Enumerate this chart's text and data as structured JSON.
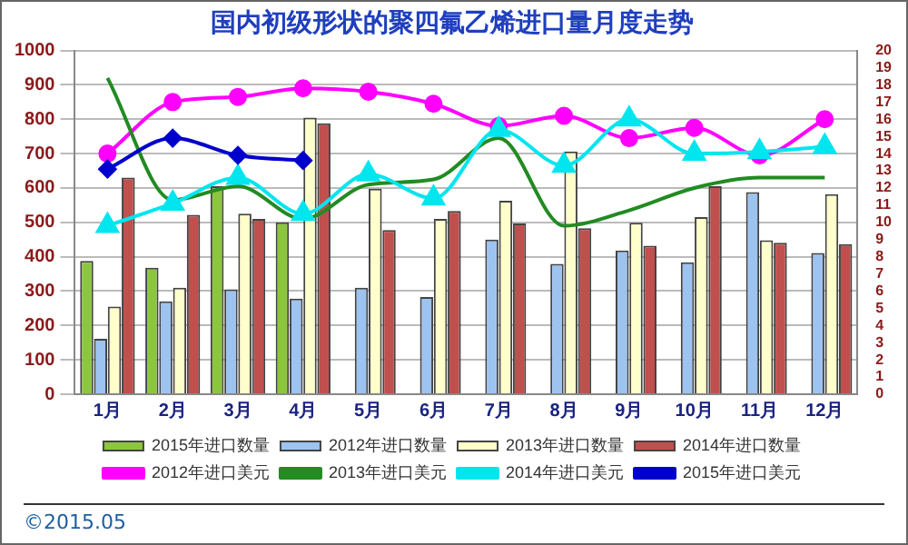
{
  "chart_data": {
    "type": "bar",
    "title": "国内初级形状的聚四氟乙烯进口量月度走势",
    "categories": [
      "1月",
      "2月",
      "3月",
      "4月",
      "5月",
      "6月",
      "7月",
      "8月",
      "9月",
      "10月",
      "11月",
      "12月"
    ],
    "series": [
      {
        "name": "2015年进口数量",
        "color": "#8cc63f",
        "values": [
          388,
          368,
          605,
          500,
          null,
          null,
          null,
          null,
          null,
          null,
          null,
          null
        ]
      },
      {
        "name": "2012年进口数量",
        "color": "#9dc3f0",
        "values": [
          161,
          270,
          305,
          278,
          310,
          283,
          450,
          379,
          418,
          384,
          588,
          411
        ]
      },
      {
        "name": "2013年进口数量",
        "color": "#ffffcc",
        "values": [
          255,
          310,
          525,
          805,
          598,
          510,
          563,
          706,
          499,
          515,
          448,
          582
        ]
      },
      {
        "name": "2014年进口数量",
        "color": "#c0504d",
        "values": [
          630,
          522,
          510,
          788,
          478,
          533,
          497,
          483,
          432,
          605,
          441,
          437
        ]
      },
      {
        "name": "2012年进口美元",
        "type": "line",
        "axis": "y2",
        "marker": "circle",
        "color": "#ff00ff",
        "values": [
          14.0,
          17.0,
          17.3,
          17.8,
          17.6,
          16.9,
          15.6,
          16.2,
          14.9,
          15.5,
          13.9,
          16.0
        ]
      },
      {
        "name": "2013年进口美元",
        "type": "line",
        "axis": "y2",
        "marker": "none",
        "color": "#228b22",
        "values": [
          18.4,
          11.3,
          12.1,
          10.2,
          12.2,
          12.5,
          14.9,
          9.8,
          10.7,
          12.0,
          12.6,
          12.6
        ]
      },
      {
        "name": "2014年进口美元",
        "type": "line",
        "axis": "y2",
        "marker": "triangle",
        "color": "#00e5ee",
        "values": [
          9.8,
          11.1,
          12.6,
          10.5,
          12.8,
          11.4,
          15.4,
          13.3,
          16.0,
          14.0,
          14.1,
          14.4
        ]
      },
      {
        "name": "2015年进口美元",
        "type": "line",
        "axis": "y2",
        "marker": "diamond",
        "color": "#0000cc",
        "values": [
          13.1,
          14.9,
          13.9,
          13.6,
          null,
          null,
          null,
          null,
          null,
          null,
          null,
          null
        ]
      }
    ],
    "ylim": [
      0,
      1000
    ],
    "yticks": [
      0,
      100,
      200,
      300,
      400,
      500,
      600,
      700,
      800,
      900,
      1000
    ],
    "y2lim": [
      0,
      20
    ],
    "y2ticks": [
      0,
      1,
      2,
      3,
      4,
      5,
      6,
      7,
      8,
      9,
      10,
      11,
      12,
      13,
      14,
      15,
      16,
      17,
      18,
      19,
      20
    ],
    "grid": "y",
    "legend": "bottom",
    "annotations": [
      "©2015.05"
    ]
  }
}
